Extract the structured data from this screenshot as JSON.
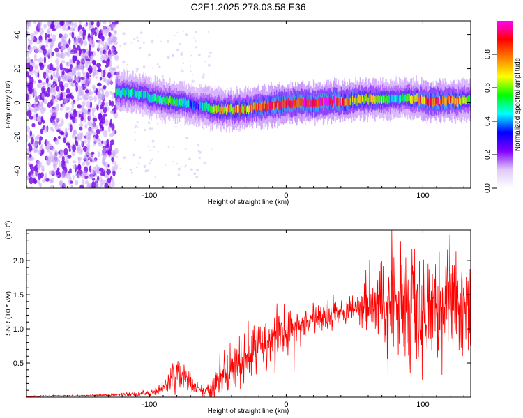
{
  "title": "C2E1.2025.278.03.58.E36",
  "chart_data": [
    {
      "type": "heatmap",
      "xlabel": "Height of straight line (km)",
      "ylabel": "Frequency (Hz)",
      "xlim": [
        -190,
        135
      ],
      "ylim": [
        -50,
        48
      ],
      "xticks": [
        -100,
        0,
        100
      ],
      "xtick_labels": [
        "-100",
        "0",
        "100"
      ],
      "yticks": [
        -40,
        -20,
        0,
        20,
        40
      ],
      "ytick_labels": [
        "-40",
        "-20",
        "0",
        "20",
        "40"
      ],
      "colorbar": {
        "label": "Normalized spectral amplitude",
        "range": [
          0,
          1
        ],
        "ticks": [
          0.0,
          0.2,
          0.4,
          0.6,
          0.8
        ],
        "tick_labels": [
          "0.0",
          "0.2",
          "0.4",
          "0.6",
          "0.8"
        ],
        "colormap": [
          "#ffffff",
          "#e0c8f8",
          "#8000ff",
          "#0000ff",
          "#00ffff",
          "#00ff00",
          "#ffff00",
          "#ff8000",
          "#ff0000",
          "#ff00ff"
        ]
      },
      "noise_region": {
        "x_from": -190,
        "x_to": -124,
        "freq_from": -50,
        "freq_to": 48
      },
      "ridge": {
        "x": [
          -125,
          -115,
          -105,
          -95,
          -85,
          -75,
          -65,
          -55,
          -45,
          -35,
          -25,
          -15,
          -5,
          5,
          15,
          25,
          35,
          45,
          55,
          65,
          75,
          85,
          95,
          105,
          115,
          125,
          135
        ],
        "freq": [
          6,
          6,
          5,
          2,
          1,
          0,
          -2,
          -3,
          -4,
          -4,
          -3,
          -2,
          -1,
          0,
          0,
          0,
          1,
          1,
          2,
          2,
          2,
          3,
          2,
          1,
          1,
          1,
          2
        ],
        "amplitude": [
          0.45,
          0.45,
          0.42,
          0.5,
          0.5,
          0.45,
          0.3,
          0.55,
          0.65,
          0.7,
          0.72,
          0.8,
          0.85,
          0.9,
          0.88,
          0.87,
          0.9,
          0.75,
          0.65,
          0.65,
          0.45,
          0.45,
          0.7,
          0.85,
          0.75,
          0.7,
          0.45
        ]
      }
    },
    {
      "type": "line",
      "color": "#ff0000",
      "xlabel": "Height of straight line (km)",
      "ylabel": "SNR (10 * v/v)",
      "multiplier_label": "(x10",
      "multiplier_exp": "4",
      "xlim": [
        -190,
        135
      ],
      "ylim": [
        0,
        2.45
      ],
      "xticks": [
        -100,
        0,
        100
      ],
      "xtick_labels": [
        "-100",
        "0",
        "100"
      ],
      "yticks": [
        0.5,
        1.0,
        1.5,
        2.0
      ],
      "ytick_labels": [
        "0.5",
        "1.0",
        "1.5",
        "2.0"
      ],
      "series": [
        {
          "name": "SNR",
          "x": [
            -190,
            -170,
            -150,
            -130,
            -120,
            -110,
            -100,
            -95,
            -90,
            -85,
            -80,
            -75,
            -70,
            -65,
            -60,
            -55,
            -50,
            -40,
            -30,
            -20,
            -10,
            0,
            10,
            20,
            30,
            40,
            50,
            60,
            70,
            80,
            90,
            100,
            110,
            120,
            135
          ],
          "y": [
            0.01,
            0.02,
            0.02,
            0.03,
            0.04,
            0.05,
            0.06,
            0.08,
            0.15,
            0.25,
            0.33,
            0.28,
            0.2,
            0.12,
            0.08,
            0.12,
            0.25,
            0.4,
            0.55,
            0.72,
            0.85,
            0.95,
            1.05,
            1.15,
            1.22,
            1.25,
            1.28,
            1.3,
            1.35,
            1.5,
            1.35,
            1.25,
            1.3,
            1.45,
            1.3
          ],
          "noise": [
            0.005,
            0.005,
            0.005,
            0.01,
            0.01,
            0.02,
            0.02,
            0.03,
            0.05,
            0.08,
            0.12,
            0.1,
            0.08,
            0.05,
            0.03,
            0.08,
            0.15,
            0.15,
            0.18,
            0.2,
            0.2,
            0.15,
            0.12,
            0.1,
            0.1,
            0.08,
            0.1,
            0.25,
            0.3,
            0.45,
            0.5,
            0.3,
            0.35,
            0.4,
            0.35
          ]
        }
      ]
    }
  ]
}
